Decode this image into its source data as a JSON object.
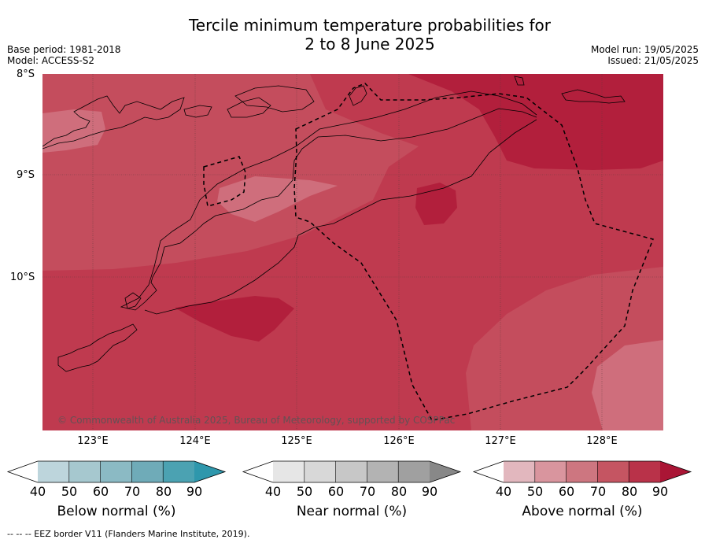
{
  "title_line1": "Tercile minimum temperature probabilities for",
  "title_line2": "2 to 8 June 2025",
  "base_period": "Base period: 1981-2018",
  "model": "Model: ACCESS-S2",
  "model_run": "Model run: 19/05/2025",
  "issued": "Issued: 21/05/2025",
  "lat_labels": [
    "8°S",
    "9°S",
    "10°S"
  ],
  "lon_labels": [
    "123°E",
    "124°E",
    "125°E",
    "126°E",
    "127°E",
    "128°E"
  ],
  "copyright": "© Commonwealth of Australia 2025, Bureau of Meteorology, supported by COSPPac",
  "footer": "--  --  -- EEZ border V11 (Flanders Marine Institute, 2019).",
  "colorbars": [
    {
      "label": "Below normal (%)",
      "ticks": [
        "40",
        "50",
        "60",
        "70",
        "80",
        "90"
      ],
      "colors": [
        "#ffffff",
        "#bdd5dc",
        "#a6c8cf",
        "#8bbac4",
        "#6fabb8",
        "#4ba2b2",
        "#2e97ac"
      ]
    },
    {
      "label": "Near normal (%)",
      "ticks": [
        "40",
        "50",
        "60",
        "70",
        "80",
        "90"
      ],
      "colors": [
        "#ffffff",
        "#e6e6e6",
        "#d8d8d8",
        "#c7c7c7",
        "#b3b3b3",
        "#a0a0a0",
        "#888888"
      ]
    },
    {
      "label": "Above normal (%)",
      "ticks": [
        "40",
        "50",
        "60",
        "70",
        "80",
        "90"
      ],
      "colors": [
        "#ffffff",
        "#e2b7be",
        "#d9959e",
        "#cd7680",
        "#c55562",
        "#b93249",
        "#aa1535"
      ]
    }
  ],
  "map_colors": {
    "p60": "#cf6e7c",
    "p70": "#c44d5d",
    "p80": "#bf3a4f",
    "p90": "#b21f3c"
  }
}
